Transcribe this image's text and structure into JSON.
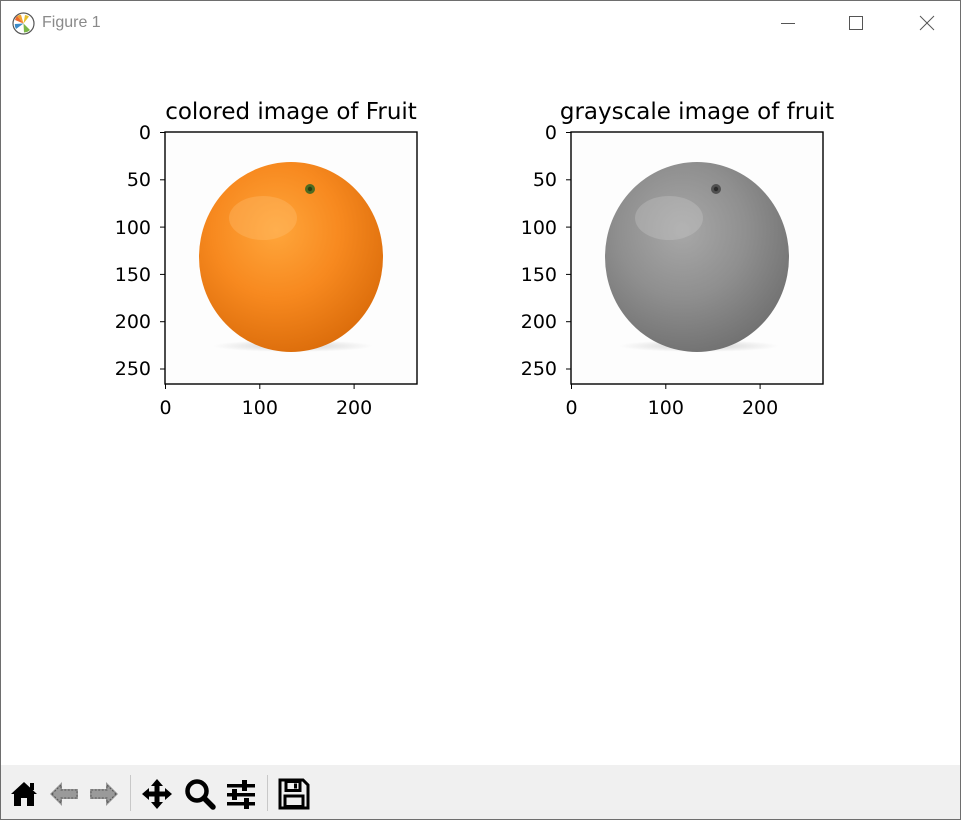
{
  "window": {
    "title": "Figure 1"
  },
  "subplots": [
    {
      "title": "colored image of Fruit",
      "mode": "color",
      "x_ticks": [
        "0",
        "100",
        "200"
      ],
      "y_ticks": [
        "0",
        "50",
        "100",
        "150",
        "200",
        "250"
      ],
      "image_size": [
        267,
        267
      ]
    },
    {
      "title": "grayscale image of fruit",
      "mode": "gray",
      "x_ticks": [
        "0",
        "100",
        "200"
      ],
      "y_ticks": [
        "0",
        "50",
        "100",
        "150",
        "200",
        "250"
      ],
      "image_size": [
        267,
        267
      ]
    }
  ],
  "toolbar": {
    "buttons": [
      "home-icon",
      "back-arrow-icon",
      "forward-arrow-icon",
      "pan-icon",
      "zoom-icon",
      "configure-subplots-icon",
      "save-icon"
    ]
  }
}
